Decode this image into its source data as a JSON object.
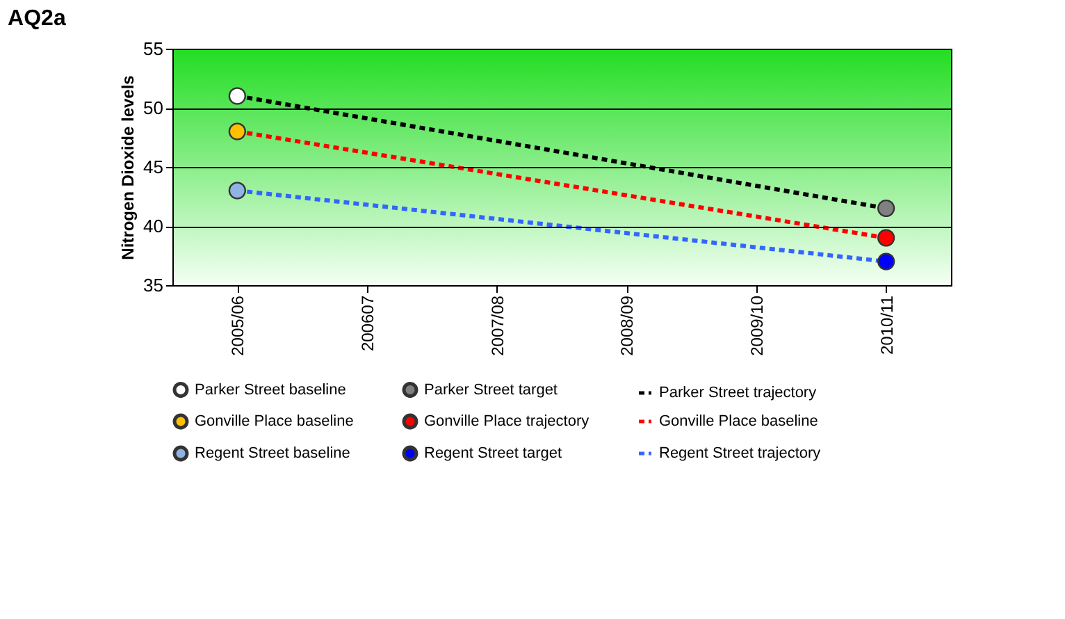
{
  "chart_data": {
    "type": "line",
    "title": "AQ2a",
    "ylabel": "Nitrogen Dioxide levels",
    "categories": [
      "2005/06",
      "200607",
      "2007/08",
      "2008/09",
      "2009/10",
      "2010/11"
    ],
    "ylim": [
      35,
      55
    ],
    "yticks": [
      35,
      40,
      45,
      50,
      55
    ],
    "grid": "y",
    "legend": "bottom",
    "series": [
      {
        "name": "Parker Street baseline",
        "type": "scatter",
        "marker": "circle",
        "color": "#ffffff",
        "values": [
          51,
          null,
          null,
          null,
          null,
          null
        ]
      },
      {
        "name": "Parker Street target",
        "type": "scatter",
        "marker": "circle",
        "color": "#808080",
        "values": [
          null,
          null,
          null,
          null,
          null,
          41.5
        ]
      },
      {
        "name": "Parker Street trajectory",
        "line_style": "dashed",
        "color": "#000000",
        "x": [
          "2005/06",
          "2010/11"
        ],
        "values": [
          51,
          41.5
        ]
      },
      {
        "name": "Gonville Place baseline",
        "type": "scatter",
        "marker": "circle",
        "color": "#ffc000",
        "values": [
          48,
          null,
          null,
          null,
          null,
          null
        ]
      },
      {
        "name": "Gonville Place trajectory",
        "type": "scatter",
        "marker": "circle",
        "color": "#ff0000",
        "values": [
          null,
          null,
          null,
          null,
          null,
          39
        ]
      },
      {
        "name": "Gonville Place baseline",
        "line_style": "dashed",
        "color": "#ff0000",
        "x": [
          "2005/06",
          "2010/11"
        ],
        "values": [
          48,
          39
        ]
      },
      {
        "name": "Regent Street baseline",
        "type": "scatter",
        "marker": "circle",
        "color": "#8fb4e3",
        "values": [
          43,
          null,
          null,
          null,
          null,
          null
        ]
      },
      {
        "name": "Regent Street target",
        "type": "scatter",
        "marker": "circle",
        "color": "#0000ff",
        "values": [
          null,
          null,
          null,
          null,
          null,
          37
        ]
      },
      {
        "name": "Regent Street trajectory",
        "line_style": "dashed",
        "color": "#3366ff",
        "x": [
          "2005/06",
          "2010/11"
        ],
        "values": [
          43,
          37
        ]
      }
    ]
  }
}
